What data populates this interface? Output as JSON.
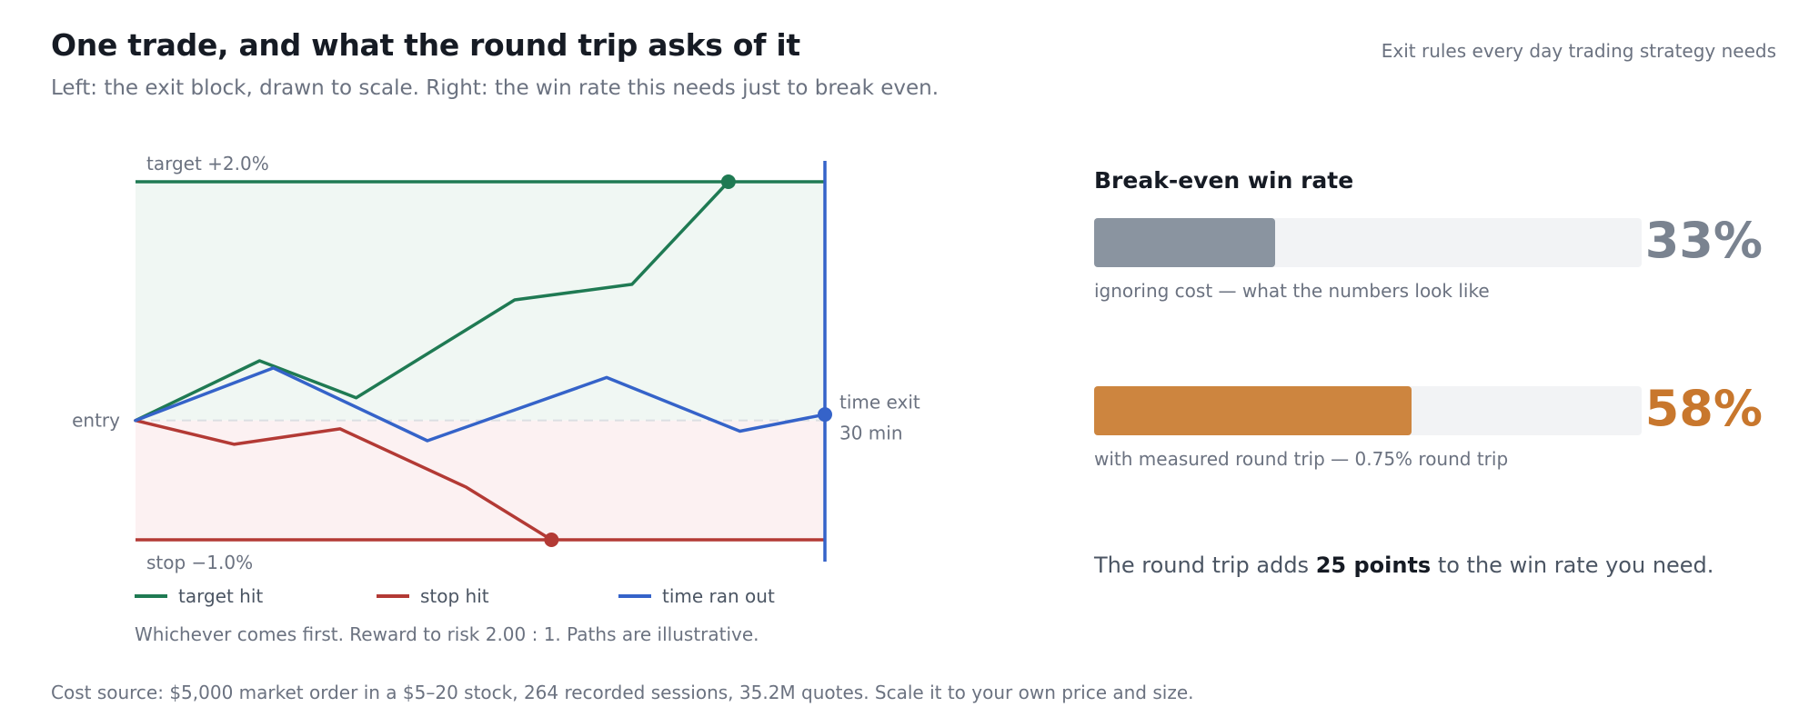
{
  "header": {
    "title": "One trade, and what the round trip asks of it",
    "subtitle": "Left: the exit block, drawn to scale. Right: the win rate this needs just to break even.",
    "kicker": "Exit rules every day trading strategy needs"
  },
  "colors": {
    "target": "#1f7a53",
    "stop": "#b33a35",
    "time": "#3563c9",
    "gray_bar": "#8a94a0",
    "orange_bar": "#cd853f",
    "orange_text": "#c8772d"
  },
  "chart_data": {
    "type": "line",
    "x_unit": "minutes",
    "y_unit": "percent",
    "xlim": [
      0,
      30
    ],
    "ylim": [
      -1.0,
      2.0
    ],
    "levels": {
      "target_value": 2.0,
      "stop_value": -1.0,
      "entry_value": 0.0,
      "time_exit_minute": 30
    },
    "labels": {
      "target": "target +2.0%",
      "stop": "stop −1.0%",
      "entry": "entry",
      "time_exit_line1": "time exit",
      "time_exit_line2": "30 min"
    },
    "series": [
      {
        "name": "target hit",
        "x": [
          0,
          5.4,
          9.6,
          16.5,
          21.6,
          25.8
        ],
        "y": [
          0,
          0.5,
          0.19,
          1.01,
          1.14,
          2.0
        ]
      },
      {
        "name": "stop hit",
        "x": [
          0,
          4.3,
          8.9,
          14.4,
          18.1
        ],
        "y": [
          0,
          -0.2,
          -0.07,
          -0.56,
          -1.0
        ]
      },
      {
        "name": "time ran out",
        "x": [
          0,
          6.0,
          12.7,
          20.5,
          26.3,
          30
        ],
        "y": [
          0,
          0.44,
          -0.17,
          0.36,
          -0.09,
          0.05
        ]
      }
    ],
    "note": "Whichever comes first. Reward to risk 2.00 : 1. Paths are illustrative."
  },
  "breakeven": {
    "heading": "Break-even win rate",
    "bars": [
      {
        "value": 33,
        "label": "33%",
        "caption": "ignoring cost — what the numbers look like"
      },
      {
        "value": 58,
        "label": "58%",
        "caption": "with measured round trip — 0.75% round trip"
      }
    ],
    "summary_prefix": "The round trip adds ",
    "summary_bold": "25 points",
    "summary_suffix": " to the win rate you need."
  },
  "footer": {
    "source": "Cost source: $5,000 market order in a $5–20 stock, 264 recorded sessions, 35.2M quotes. Scale it to your own price and size."
  }
}
